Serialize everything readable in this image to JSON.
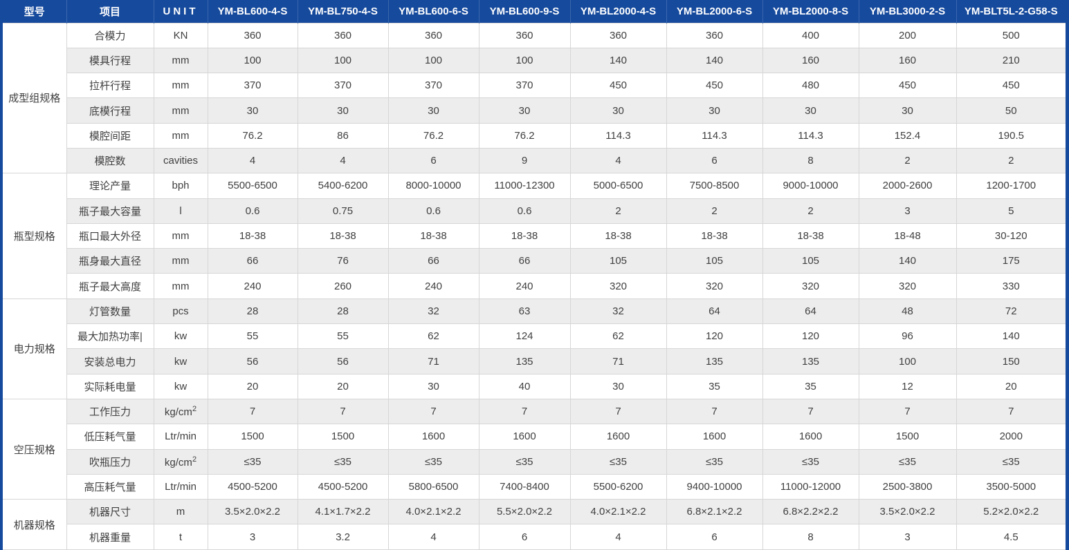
{
  "colors": {
    "header_bg": "#164a9d",
    "header_separator": "#3c67ae",
    "header_text": "#ffffff",
    "stripe_bg": "#ededed",
    "grid_line": "#d6d6d6",
    "cell_text": "#404040"
  },
  "table": {
    "header": {
      "model_label": "型号",
      "item_label": "项目",
      "unit_label": "UNIT",
      "models": [
        "YM-BL600-4-S",
        "YM-BL750-4-S",
        "YM-BL600-6-S",
        "YM-BL600-9-S",
        "YM-BL2000-4-S",
        "YM-BL2000-6-S",
        "YM-BL2000-8-S",
        "YM-BL3000-2-S",
        "YM-BLT5L-2-G58-S"
      ]
    },
    "groups": [
      {
        "name": "成型组规格",
        "rows": [
          {
            "item": "合模力",
            "unit": "KN",
            "values": [
              "360",
              "360",
              "360",
              "360",
              "360",
              "360",
              "400",
              "200",
              "500"
            ]
          },
          {
            "item": "模具行程",
            "unit": "mm",
            "values": [
              "100",
              "100",
              "100",
              "100",
              "140",
              "140",
              "160",
              "160",
              "210"
            ]
          },
          {
            "item": "拉杆行程",
            "unit": "mm",
            "values": [
              "370",
              "370",
              "370",
              "370",
              "450",
              "450",
              "480",
              "450",
              "450"
            ]
          },
          {
            "item": "底模行程",
            "unit": "mm",
            "values": [
              "30",
              "30",
              "30",
              "30",
              "30",
              "30",
              "30",
              "30",
              "50"
            ]
          },
          {
            "item": "模腔间距",
            "unit": "mm",
            "values": [
              "76.2",
              "86",
              "76.2",
              "76.2",
              "114.3",
              "114.3",
              "114.3",
              "152.4",
              "190.5"
            ]
          },
          {
            "item": "模腔数",
            "unit": "cavities",
            "values": [
              "4",
              "4",
              "6",
              "9",
              "4",
              "6",
              "8",
              "2",
              "2"
            ]
          }
        ]
      },
      {
        "name": "瓶型规格",
        "rows": [
          {
            "item": "理论产量",
            "unit": "bph",
            "values": [
              "5500-6500",
              "5400-6200",
              "8000-10000",
              "11000-12300",
              "5000-6500",
              "7500-8500",
              "9000-10000",
              "2000-2600",
              "1200-1700"
            ]
          },
          {
            "item": "瓶子最大容量",
            "unit": "l",
            "values": [
              "0.6",
              "0.75",
              "0.6",
              "0.6",
              "2",
              "2",
              "2",
              "3",
              "5"
            ]
          },
          {
            "item": "瓶口最大外径",
            "unit": "mm",
            "values": [
              "18-38",
              "18-38",
              "18-38",
              "18-38",
              "18-38",
              "18-38",
              "18-38",
              "18-48",
              "30-120"
            ]
          },
          {
            "item": "瓶身最大直径",
            "unit": "mm",
            "values": [
              "66",
              "76",
              "66",
              "66",
              "105",
              "105",
              "105",
              "140",
              "175"
            ]
          },
          {
            "item": "瓶子最大高度",
            "unit": "mm",
            "values": [
              "240",
              "260",
              "240",
              "240",
              "320",
              "320",
              "320",
              "320",
              "330"
            ]
          }
        ]
      },
      {
        "name": "电力规格",
        "rows": [
          {
            "item": "灯管数量",
            "unit": "pcs",
            "values": [
              "28",
              "28",
              "32",
              "63",
              "32",
              "64",
              "64",
              "48",
              "72"
            ]
          },
          {
            "item": "最大加热功率|",
            "unit": "kw",
            "values": [
              "55",
              "55",
              "62",
              "124",
              "62",
              "120",
              "120",
              "96",
              "140"
            ]
          },
          {
            "item": "安装总电力",
            "unit": "kw",
            "values": [
              "56",
              "56",
              "71",
              "135",
              "71",
              "135",
              "135",
              "100",
              "150"
            ]
          },
          {
            "item": "实际耗电量",
            "unit": "kw",
            "values": [
              "20",
              "20",
              "30",
              "40",
              "30",
              "35",
              "35",
              "12",
              "20"
            ]
          }
        ]
      },
      {
        "name": "空压规格",
        "rows": [
          {
            "item": "工作压力",
            "unit": "kg/cm",
            "unit_sup": "2",
            "values": [
              "7",
              "7",
              "7",
              "7",
              "7",
              "7",
              "7",
              "7",
              "7"
            ]
          },
          {
            "item": "低压耗气量",
            "unit": "Ltr/min",
            "values": [
              "1500",
              "1500",
              "1600",
              "1600",
              "1600",
              "1600",
              "1600",
              "1500",
              "2000"
            ]
          },
          {
            "item": "吹瓶压力",
            "unit": "kg/cm",
            "unit_sup": "2",
            "values": [
              "≤35",
              "≤35",
              "≤35",
              "≤35",
              "≤35",
              "≤35",
              "≤35",
              "≤35",
              "≤35"
            ]
          },
          {
            "item": "高压耗气量",
            "unit": "Ltr/min",
            "values": [
              "4500-5200",
              "4500-5200",
              "5800-6500",
              "7400-8400",
              "5500-6200",
              "9400-10000",
              "11000-12000",
              "2500-3800",
              "3500-5000"
            ]
          }
        ]
      },
      {
        "name": "机器规格",
        "rows": [
          {
            "item": "机器尺寸",
            "unit": "m",
            "values": [
              "3.5×2.0×2.2",
              "4.1×1.7×2.2",
              "4.0×2.1×2.2",
              "5.5×2.0×2.2",
              "4.0×2.1×2.2",
              "6.8×2.1×2.2",
              "6.8×2.2×2.2",
              "3.5×2.0×2.2",
              "5.2×2.0×2.2"
            ]
          },
          {
            "item": "机器重量",
            "unit": "t",
            "values": [
              "3",
              "3.2",
              "4",
              "6",
              "4",
              "6",
              "8",
              "3",
              "4.5"
            ]
          }
        ]
      }
    ]
  }
}
